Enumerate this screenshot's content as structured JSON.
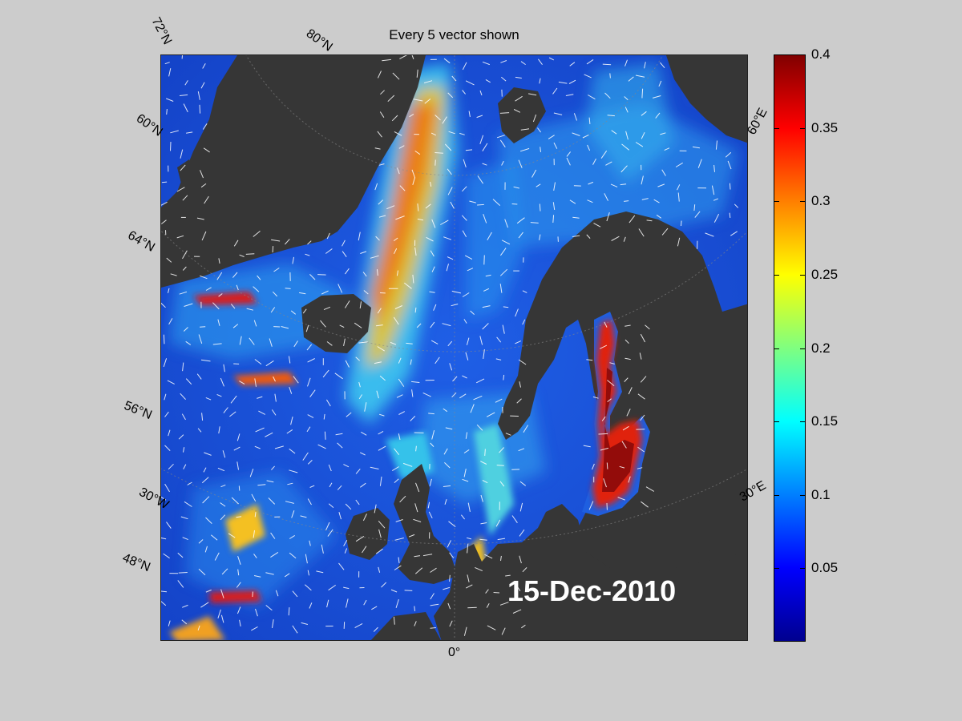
{
  "figure": {
    "title": "Every 5 vector shown",
    "date": "15-Dec-2010",
    "map_type": "ocean surface current speed with direction vectors",
    "projection": "polar stereographic (North Atlantic / Nordic Seas / Baltic)",
    "colors": {
      "land": "#363636",
      "figure_background": "#cccccc",
      "vectors": "#ffffff",
      "date_label": "#ffffff"
    }
  },
  "graticule_labels": {
    "lat_top_72": "72°N",
    "lat_top_80": "80°N",
    "lat_left_60": "60°N",
    "lat_left_64": "64°N",
    "lat_left_56": "56°N",
    "lon_left_30w": "30°W",
    "lat_left_48": "48°N",
    "lon_bottom_0": "0°",
    "lon_right_60e": "60°E",
    "lon_right_30e": "30°E"
  },
  "colorbar": {
    "colormap": "jet",
    "range": [
      0,
      0.4
    ],
    "ticks": [
      "0.4",
      "0.35",
      "0.3",
      "0.25",
      "0.2",
      "0.15",
      "0.1",
      "0.05"
    ],
    "tick_values": [
      0.4,
      0.35,
      0.3,
      0.25,
      0.2,
      0.15,
      0.1,
      0.05
    ]
  }
}
